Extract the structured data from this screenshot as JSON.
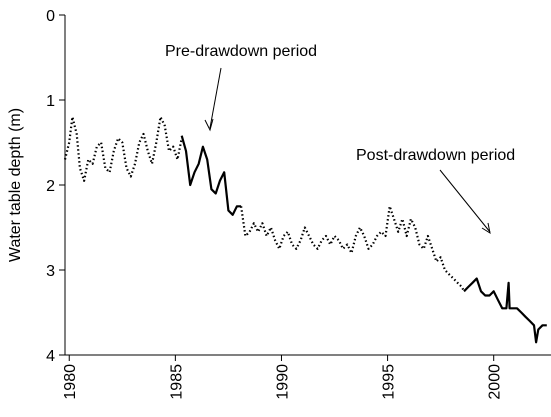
{
  "chart_data": {
    "type": "line",
    "ylabel": "Water table depth (m)",
    "annotations": [
      "Pre-drawdown period",
      "Post-drawdown period"
    ],
    "xlim": [
      1979.8,
      2002.7
    ],
    "xticks": [
      1980,
      1985,
      1990,
      1995,
      2000
    ],
    "ylim": [
      4,
      0
    ],
    "yticks": [
      0,
      1,
      2,
      3,
      4
    ],
    "y_inverted": true,
    "series": [
      {
        "color": "#000000",
        "style": "dotted",
        "x": [
          1979.8,
          1980.0,
          1980.15,
          1980.35,
          1980.5,
          1980.7,
          1980.9,
          1981.1,
          1981.3,
          1981.5,
          1981.7,
          1981.9,
          1982.1,
          1982.3,
          1982.5,
          1982.7,
          1982.9,
          1983.1,
          1983.3,
          1983.5,
          1983.7,
          1983.9,
          1984.1,
          1984.3,
          1984.5,
          1984.7,
          1984.9,
          1985.1,
          1985.3
        ],
        "values": [
          1.7,
          1.5,
          1.2,
          1.4,
          1.8,
          1.95,
          1.7,
          1.75,
          1.55,
          1.5,
          1.8,
          1.85,
          1.6,
          1.45,
          1.5,
          1.8,
          1.9,
          1.75,
          1.5,
          1.4,
          1.6,
          1.75,
          1.5,
          1.2,
          1.3,
          1.6,
          1.55,
          1.7,
          1.45
        ]
      },
      {
        "color": "#000000",
        "style": "solid",
        "x": [
          1985.3,
          1985.5,
          1985.7,
          1985.9,
          1986.1,
          1986.3,
          1986.5,
          1986.7,
          1986.9,
          1987.1,
          1987.3,
          1987.5,
          1987.7,
          1987.9,
          1988.1
        ],
        "values": [
          1.42,
          1.6,
          2.0,
          1.85,
          1.75,
          1.55,
          1.7,
          2.05,
          2.1,
          1.95,
          1.85,
          2.3,
          2.35,
          2.25,
          2.25
        ]
      },
      {
        "color": "#000000",
        "style": "dotted",
        "x": [
          1988.1,
          1988.3,
          1988.5,
          1988.7,
          1988.9,
          1989.1,
          1989.3,
          1989.5,
          1989.7,
          1989.9,
          1990.1,
          1990.3,
          1990.5,
          1990.7,
          1990.9,
          1991.1,
          1991.3,
          1991.5,
          1991.7,
          1991.9,
          1992.1,
          1992.3,
          1992.5,
          1992.7,
          1992.9,
          1993.1,
          1993.3,
          1993.5,
          1993.7,
          1993.9,
          1994.1,
          1994.3,
          1994.5,
          1994.7,
          1994.9,
          1995.1,
          1995.3,
          1995.5,
          1995.7,
          1995.9,
          1996.1,
          1996.3,
          1996.5,
          1996.7,
          1996.9,
          1997.1,
          1997.3,
          1997.5,
          1997.7,
          1997.9,
          1998.1,
          1998.3,
          1998.5,
          1998.6
        ],
        "values": [
          2.25,
          2.6,
          2.55,
          2.45,
          2.55,
          2.45,
          2.6,
          2.5,
          2.65,
          2.75,
          2.6,
          2.55,
          2.7,
          2.75,
          2.65,
          2.5,
          2.6,
          2.7,
          2.75,
          2.65,
          2.6,
          2.7,
          2.6,
          2.65,
          2.75,
          2.7,
          2.8,
          2.6,
          2.5,
          2.6,
          2.75,
          2.7,
          2.6,
          2.55,
          2.6,
          2.25,
          2.4,
          2.55,
          2.4,
          2.6,
          2.4,
          2.5,
          2.7,
          2.75,
          2.6,
          2.75,
          2.9,
          2.85,
          3.0,
          3.05,
          3.1,
          3.15,
          3.2,
          3.25
        ]
      },
      {
        "color": "#000000",
        "style": "solid",
        "x": [
          1998.6,
          1998.8,
          1999.0,
          1999.2,
          1999.4,
          1999.6,
          1999.8,
          2000.0,
          2000.2,
          2000.4,
          2000.6,
          2000.7,
          2000.75,
          2000.9,
          2001.1,
          2001.3,
          2001.5,
          2001.7,
          2001.9,
          2002.0,
          2002.1,
          2002.3,
          2002.5
        ],
        "values": [
          3.25,
          3.2,
          3.15,
          3.1,
          3.25,
          3.3,
          3.3,
          3.25,
          3.35,
          3.45,
          3.45,
          3.15,
          3.45,
          3.45,
          3.45,
          3.5,
          3.55,
          3.6,
          3.65,
          3.85,
          3.7,
          3.65,
          3.65
        ]
      }
    ]
  }
}
